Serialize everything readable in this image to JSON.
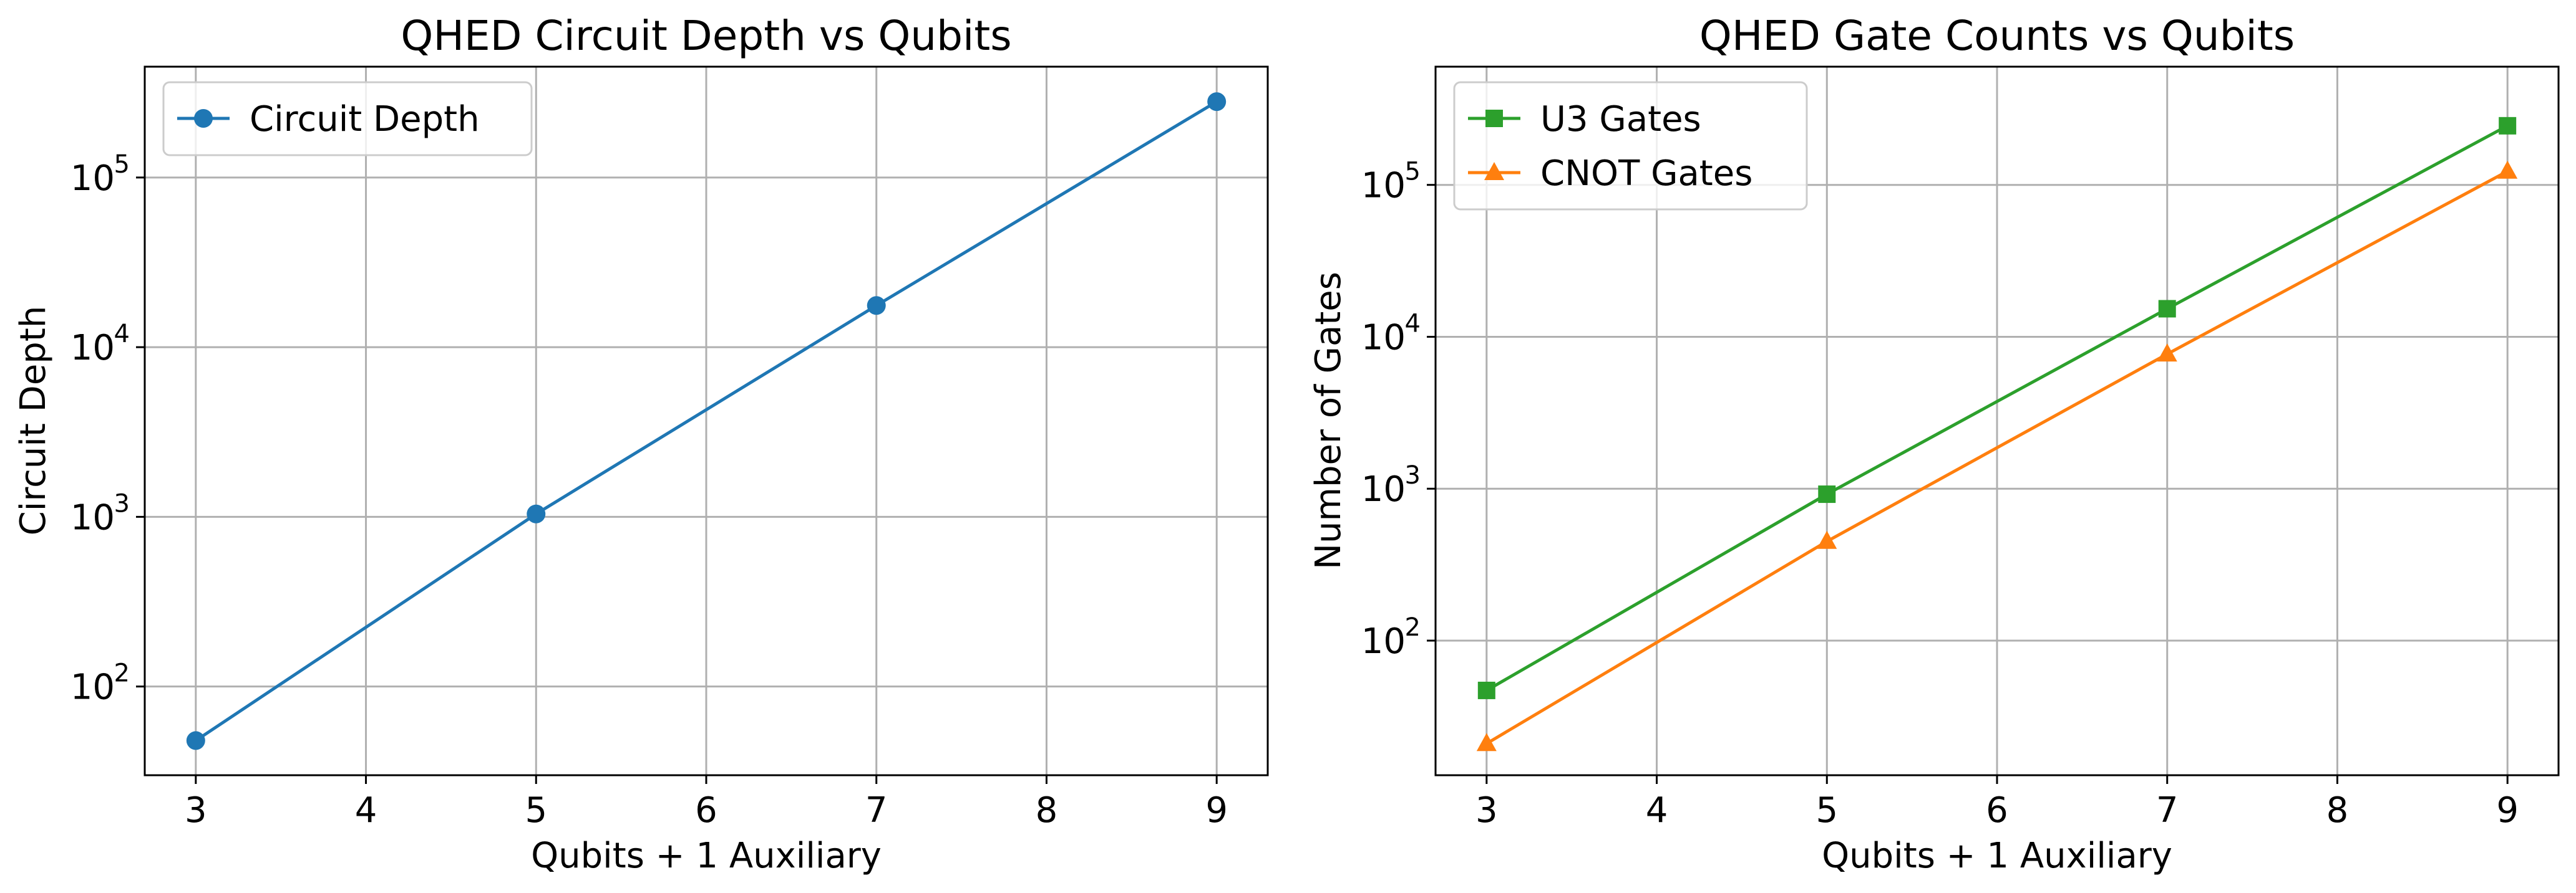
{
  "chart_data": [
    {
      "type": "line",
      "title": "QHED Circuit Depth vs Qubits",
      "xlabel": "Qubits + 1 Auxiliary",
      "ylabel": "Circuit Depth",
      "x": [
        3,
        5,
        7,
        9
      ],
      "xticks": [
        "3",
        "4",
        "5",
        "6",
        "7",
        "8",
        "9"
      ],
      "xlim": [
        2.7,
        9.3
      ],
      "yscale": "log",
      "ylim": [
        30,
        450000
      ],
      "yticks": [
        {
          "base": "10",
          "exp": "2"
        },
        {
          "base": "10",
          "exp": "3"
        },
        {
          "base": "10",
          "exp": "4"
        },
        {
          "base": "10",
          "exp": "5"
        }
      ],
      "grid": true,
      "legend_position": "upper left",
      "series": [
        {
          "name": "Circuit Depth",
          "values": [
            48,
            1040,
            17600,
            280000
          ],
          "color": "#1f77b4",
          "marker": "circle"
        }
      ]
    },
    {
      "type": "line",
      "title": "QHED Gate Counts vs Qubits",
      "xlabel": "Qubits + 1 Auxiliary",
      "ylabel": "Number of Gates",
      "x": [
        3,
        5,
        7,
        9
      ],
      "xticks": [
        "3",
        "4",
        "5",
        "6",
        "7",
        "8",
        "9"
      ],
      "xlim": [
        2.7,
        9.3
      ],
      "yscale": "log",
      "ylim": [
        13,
        600000
      ],
      "yticks": [
        {
          "base": "10",
          "exp": "2"
        },
        {
          "base": "10",
          "exp": "3"
        },
        {
          "base": "10",
          "exp": "4"
        },
        {
          "base": "10",
          "exp": "5"
        }
      ],
      "grid": true,
      "legend_position": "upper left",
      "series": [
        {
          "name": "U3 Gates",
          "values": [
            47,
            920,
            15300,
            245000
          ],
          "color": "#2ca02c",
          "marker": "square"
        },
        {
          "name": "CNOT Gates",
          "values": [
            21,
            450,
            7700,
            123000
          ],
          "color": "#ff7f0e",
          "marker": "triangle"
        }
      ]
    }
  ]
}
